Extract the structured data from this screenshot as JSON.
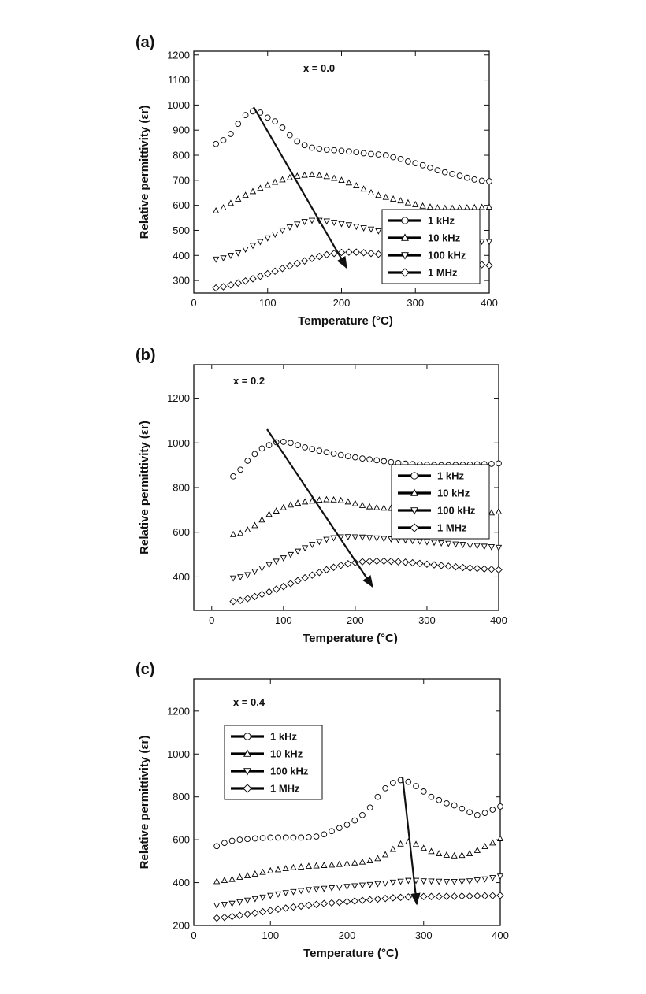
{
  "chart_data": [
    {
      "type": "scatter",
      "panel_label": "(a)",
      "annotation": "x = 0.0",
      "x_label": "Temperature (°C)",
      "y_label": "Relative permittivity (εr)",
      "x": [
        30,
        40,
        50,
        60,
        70,
        80,
        90,
        100,
        110,
        120,
        130,
        140,
        150,
        160,
        170,
        180,
        190,
        200,
        210,
        220,
        230,
        240,
        250,
        260,
        270,
        280,
        290,
        300,
        310,
        320,
        330,
        340,
        350,
        360,
        370,
        380,
        390,
        400
      ],
      "series": [
        {
          "name": "1 kHz",
          "color": "#000000",
          "marker": "circle",
          "values": [
            845,
            860,
            885,
            925,
            960,
            975,
            970,
            950,
            935,
            910,
            880,
            855,
            840,
            830,
            825,
            822,
            820,
            818,
            815,
            812,
            808,
            805,
            803,
            800,
            792,
            785,
            775,
            768,
            760,
            750,
            740,
            732,
            725,
            718,
            710,
            703,
            698,
            696
          ]
        },
        {
          "name": "10 kHz",
          "color": "#000000",
          "marker": "triangle-up",
          "values": [
            578,
            590,
            608,
            625,
            640,
            655,
            668,
            680,
            692,
            702,
            710,
            716,
            720,
            722,
            720,
            715,
            708,
            700,
            690,
            678,
            665,
            650,
            640,
            632,
            625,
            618,
            610,
            603,
            597,
            593,
            590,
            588,
            588,
            589,
            590,
            591,
            592,
            593
          ]
        },
        {
          "name": "100 kHz",
          "color": "#000000",
          "marker": "triangle-down",
          "values": [
            385,
            390,
            400,
            410,
            425,
            440,
            455,
            470,
            485,
            500,
            513,
            525,
            535,
            540,
            540,
            537,
            532,
            527,
            522,
            516,
            510,
            505,
            498,
            492,
            487,
            482,
            478,
            474,
            470,
            467,
            465,
            463,
            461,
            460,
            458,
            457,
            456,
            455
          ]
        },
        {
          "name": "1 MHz",
          "color": "#000000",
          "marker": "diamond",
          "values": [
            270,
            275,
            282,
            290,
            298,
            307,
            317,
            327,
            337,
            348,
            358,
            368,
            378,
            388,
            396,
            403,
            408,
            412,
            413,
            413,
            411,
            408,
            405,
            402,
            399,
            396,
            393,
            390,
            387,
            384,
            381,
            378,
            375,
            372,
            369,
            366,
            363,
            360
          ]
        }
      ],
      "xlim": [
        0,
        400
      ],
      "ylim": [
        250,
        1215
      ],
      "xticks": [
        0,
        100,
        200,
        300,
        400
      ],
      "yticks": [
        300,
        400,
        500,
        600,
        700,
        800,
        900,
        1000,
        1100,
        1200
      ],
      "legend": "lower right"
    },
    {
      "type": "scatter",
      "panel_label": "(b)",
      "annotation": "x = 0.2",
      "x_label": "Temperature (°C)",
      "y_label": "Relative permittivity (εr)",
      "x": [
        30,
        40,
        50,
        60,
        70,
        80,
        90,
        100,
        110,
        120,
        130,
        140,
        150,
        160,
        170,
        180,
        190,
        200,
        210,
        220,
        230,
        240,
        250,
        260,
        270,
        280,
        290,
        300,
        310,
        320,
        330,
        340,
        350,
        360,
        370,
        380,
        390,
        400
      ],
      "series": [
        {
          "name": "1 kHz",
          "color": "#000000",
          "marker": "circle",
          "values": [
            850,
            880,
            920,
            950,
            975,
            990,
            1003,
            1005,
            1000,
            990,
            980,
            972,
            965,
            958,
            952,
            946,
            940,
            935,
            930,
            926,
            922,
            918,
            914,
            910,
            907,
            905,
            903,
            902,
            901,
            900,
            900,
            901,
            902,
            903,
            904,
            905,
            906,
            908
          ]
        },
        {
          "name": "10 kHz",
          "color": "#000000",
          "marker": "triangle-up",
          "values": [
            590,
            595,
            610,
            630,
            655,
            680,
            695,
            710,
            722,
            730,
            736,
            740,
            744,
            746,
            745,
            742,
            736,
            728,
            720,
            714,
            710,
            708,
            707,
            706,
            705,
            703,
            701,
            699,
            696,
            693,
            690,
            688,
            686,
            684,
            683,
            684,
            687,
            692
          ]
        },
        {
          "name": "100 kHz",
          "color": "#000000",
          "marker": "triangle-down",
          "values": [
            395,
            400,
            410,
            425,
            440,
            455,
            470,
            485,
            500,
            515,
            530,
            545,
            558,
            568,
            575,
            579,
            580,
            579,
            578,
            576,
            574,
            572,
            570,
            567,
            565,
            562,
            560,
            557,
            555,
            552,
            550,
            547,
            545,
            542,
            540,
            537,
            535,
            532
          ]
        },
        {
          "name": "1 MHz",
          "color": "#000000",
          "marker": "diamond",
          "values": [
            290,
            295,
            303,
            312,
            322,
            333,
            345,
            357,
            370,
            383,
            396,
            408,
            420,
            432,
            443,
            452,
            459,
            464,
            468,
            470,
            471,
            471,
            470,
            468,
            466,
            463,
            460,
            457,
            454,
            451,
            448,
            445,
            442,
            440,
            438,
            436,
            434,
            432
          ]
        }
      ],
      "xlim": [
        -25,
        400
      ],
      "ylim": [
        250,
        1350
      ],
      "xticks": [
        0,
        100,
        200,
        300,
        400
      ],
      "yticks": [
        400,
        600,
        800,
        1000,
        1200
      ],
      "legend": "center right"
    },
    {
      "type": "scatter",
      "panel_label": "(c)",
      "annotation": "x = 0.4",
      "x_label": "Temperature (°C)",
      "y_label": "Relative permittivity (εr)",
      "x": [
        30,
        40,
        50,
        60,
        70,
        80,
        90,
        100,
        110,
        120,
        130,
        140,
        150,
        160,
        170,
        180,
        190,
        200,
        210,
        220,
        230,
        240,
        250,
        260,
        270,
        280,
        290,
        300,
        310,
        320,
        330,
        340,
        350,
        360,
        370,
        380,
        390,
        400
      ],
      "series": [
        {
          "name": "1 kHz",
          "color": "#000000",
          "marker": "circle",
          "values": [
            570,
            585,
            595,
            600,
            603,
            606,
            608,
            610,
            610,
            610,
            610,
            610,
            612,
            615,
            625,
            640,
            655,
            670,
            690,
            715,
            750,
            800,
            840,
            865,
            878,
            870,
            850,
            825,
            800,
            785,
            770,
            760,
            745,
            728,
            715,
            725,
            740,
            755
          ]
        },
        {
          "name": "10 kHz",
          "color": "#000000",
          "marker": "triangle-up",
          "values": [
            405,
            410,
            415,
            425,
            432,
            440,
            448,
            455,
            460,
            465,
            470,
            473,
            476,
            478,
            480,
            482,
            485,
            488,
            492,
            496,
            502,
            512,
            530,
            555,
            580,
            590,
            578,
            560,
            545,
            535,
            528,
            525,
            527,
            535,
            550,
            568,
            585,
            605
          ]
        },
        {
          "name": "100 kHz",
          "color": "#000000",
          "marker": "triangle-down",
          "values": [
            295,
            298,
            303,
            310,
            318,
            325,
            332,
            340,
            347,
            353,
            358,
            363,
            367,
            370,
            373,
            376,
            379,
            382,
            385,
            388,
            391,
            395,
            398,
            402,
            406,
            410,
            410,
            408,
            407,
            406,
            405,
            405,
            406,
            408,
            412,
            417,
            423,
            430
          ]
        },
        {
          "name": "1 MHz",
          "color": "#000000",
          "marker": "diamond",
          "values": [
            235,
            238,
            242,
            247,
            253,
            258,
            264,
            270,
            276,
            281,
            286,
            290,
            294,
            298,
            302,
            305,
            308,
            311,
            314,
            317,
            320,
            323,
            326,
            329,
            331,
            333,
            334,
            335,
            335,
            335,
            336,
            336,
            337,
            337,
            338,
            338,
            339,
            340
          ]
        }
      ],
      "xlim": [
        0,
        400
      ],
      "ylim": [
        200,
        1350
      ],
      "xticks": [
        0,
        100,
        200,
        300,
        400
      ],
      "yticks": [
        200,
        400,
        600,
        800,
        1000,
        1200
      ],
      "legend": "upper left"
    }
  ]
}
